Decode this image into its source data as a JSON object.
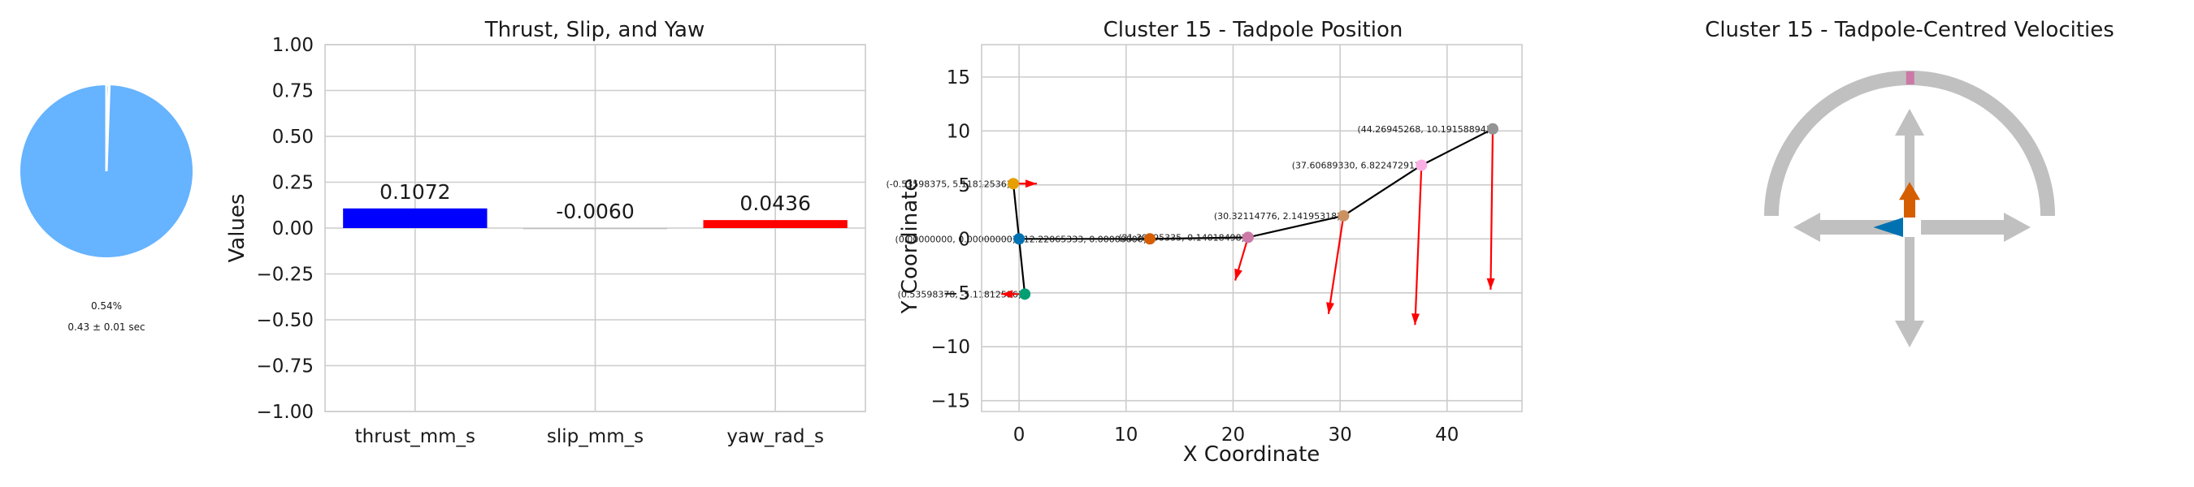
{
  "pie_panel": {
    "percent_label": "0.54%",
    "duration_label": "0.43 ± 0.01 sec",
    "fraction": 0.0054,
    "colors": {
      "main": "#66b3ff"
    }
  },
  "chart_data": [
    {
      "type": "bar",
      "title": "Thrust, Slip, and Yaw",
      "xlabel": "",
      "ylabel": "Values",
      "categories": [
        "thrust_mm_s",
        "slip_mm_s",
        "yaw_rad_s"
      ],
      "values": [
        0.1072,
        -0.006,
        0.0436
      ],
      "value_labels": [
        "0.1072",
        "-0.0060",
        "0.0436"
      ],
      "colors": [
        "#0000ff",
        "#c0c0c0",
        "#ff0000"
      ],
      "ylim": [
        -1.0,
        1.0
      ],
      "yticks": [
        "1.00",
        "0.75",
        "0.50",
        "0.25",
        "0.00",
        "−0.25",
        "−0.50",
        "−0.75",
        "−1.00"
      ],
      "grid": true
    },
    {
      "type": "scatter",
      "title": "Cluster 15 - Tadpole Position",
      "xlabel": "X Coordinate",
      "ylabel": "Y Coordinate",
      "xlim": [
        -3.5,
        47
      ],
      "ylim": [
        18,
        -16
      ],
      "y_inverted": true,
      "xticks": [
        "0",
        "10",
        "20",
        "30",
        "40"
      ],
      "yticks": [
        "−15",
        "−10",
        "−5",
        "0",
        "5",
        "10",
        "15"
      ],
      "grid": true,
      "points": [
        {
          "x": 0.536,
          "y": -5.118,
          "label": "(0.53598378, -5.11812536)",
          "color": "#009e73"
        },
        {
          "x": 0.0,
          "y": 0.0,
          "label": "(0.00000000, 0.00000000)",
          "color": "#0072b2"
        },
        {
          "x": -0.536,
          "y": 5.118,
          "label": "(-0.53598375, 5.11812536)",
          "color": "#e69f00"
        },
        {
          "x": 12.221,
          "y": 0.0,
          "label": "(12.22065333, 0.00000000)",
          "color": "#d55e00"
        },
        {
          "x": 21.4,
          "y": 0.14,
          "label": "(21.39595335, 0.14018498)",
          "color": "#cc79a7"
        },
        {
          "x": 30.321,
          "y": 2.142,
          "label": "(30.32114776, 2.14195318)",
          "color": "#ca9161"
        },
        {
          "x": 37.607,
          "y": 6.822,
          "label": "(37.60689330, 6.82247291)",
          "color": "#fbafe4"
        },
        {
          "x": 44.269,
          "y": 10.192,
          "label": "(44.26945268, 10.19158894)",
          "color": "#949494"
        }
      ],
      "path_order": [
        0,
        1,
        3,
        4,
        5,
        6,
        7
      ],
      "arrows": [
        {
          "x": 0.536,
          "y": -5.118,
          "dx": -2.2,
          "dy": 0.0
        },
        {
          "x": -0.536,
          "y": 5.118,
          "dx": 2.2,
          "dy": 0.0
        },
        {
          "x": 21.4,
          "y": 0.14,
          "dx": -1.2,
          "dy": -4.0
        },
        {
          "x": 30.321,
          "y": 2.142,
          "dx": -1.4,
          "dy": -9.1
        },
        {
          "x": 37.607,
          "y": 6.822,
          "dx": -0.6,
          "dy": -14.8
        },
        {
          "x": 44.269,
          "y": 10.192,
          "dx": -0.2,
          "dy": -14.9
        }
      ],
      "arrow_color": "#ff0000"
    }
  ],
  "compass_panel": {
    "title": "Cluster 15 - Tadpole-Centred Velocities",
    "thrust_fraction": 0.1072,
    "slip_fraction": -0.006,
    "yaw_fraction": 0.0436,
    "colors": {
      "guide": "#c0c0c0",
      "thrust": "#d55e00",
      "slip": "#0072b2",
      "yaw": "#cc79a7"
    }
  }
}
